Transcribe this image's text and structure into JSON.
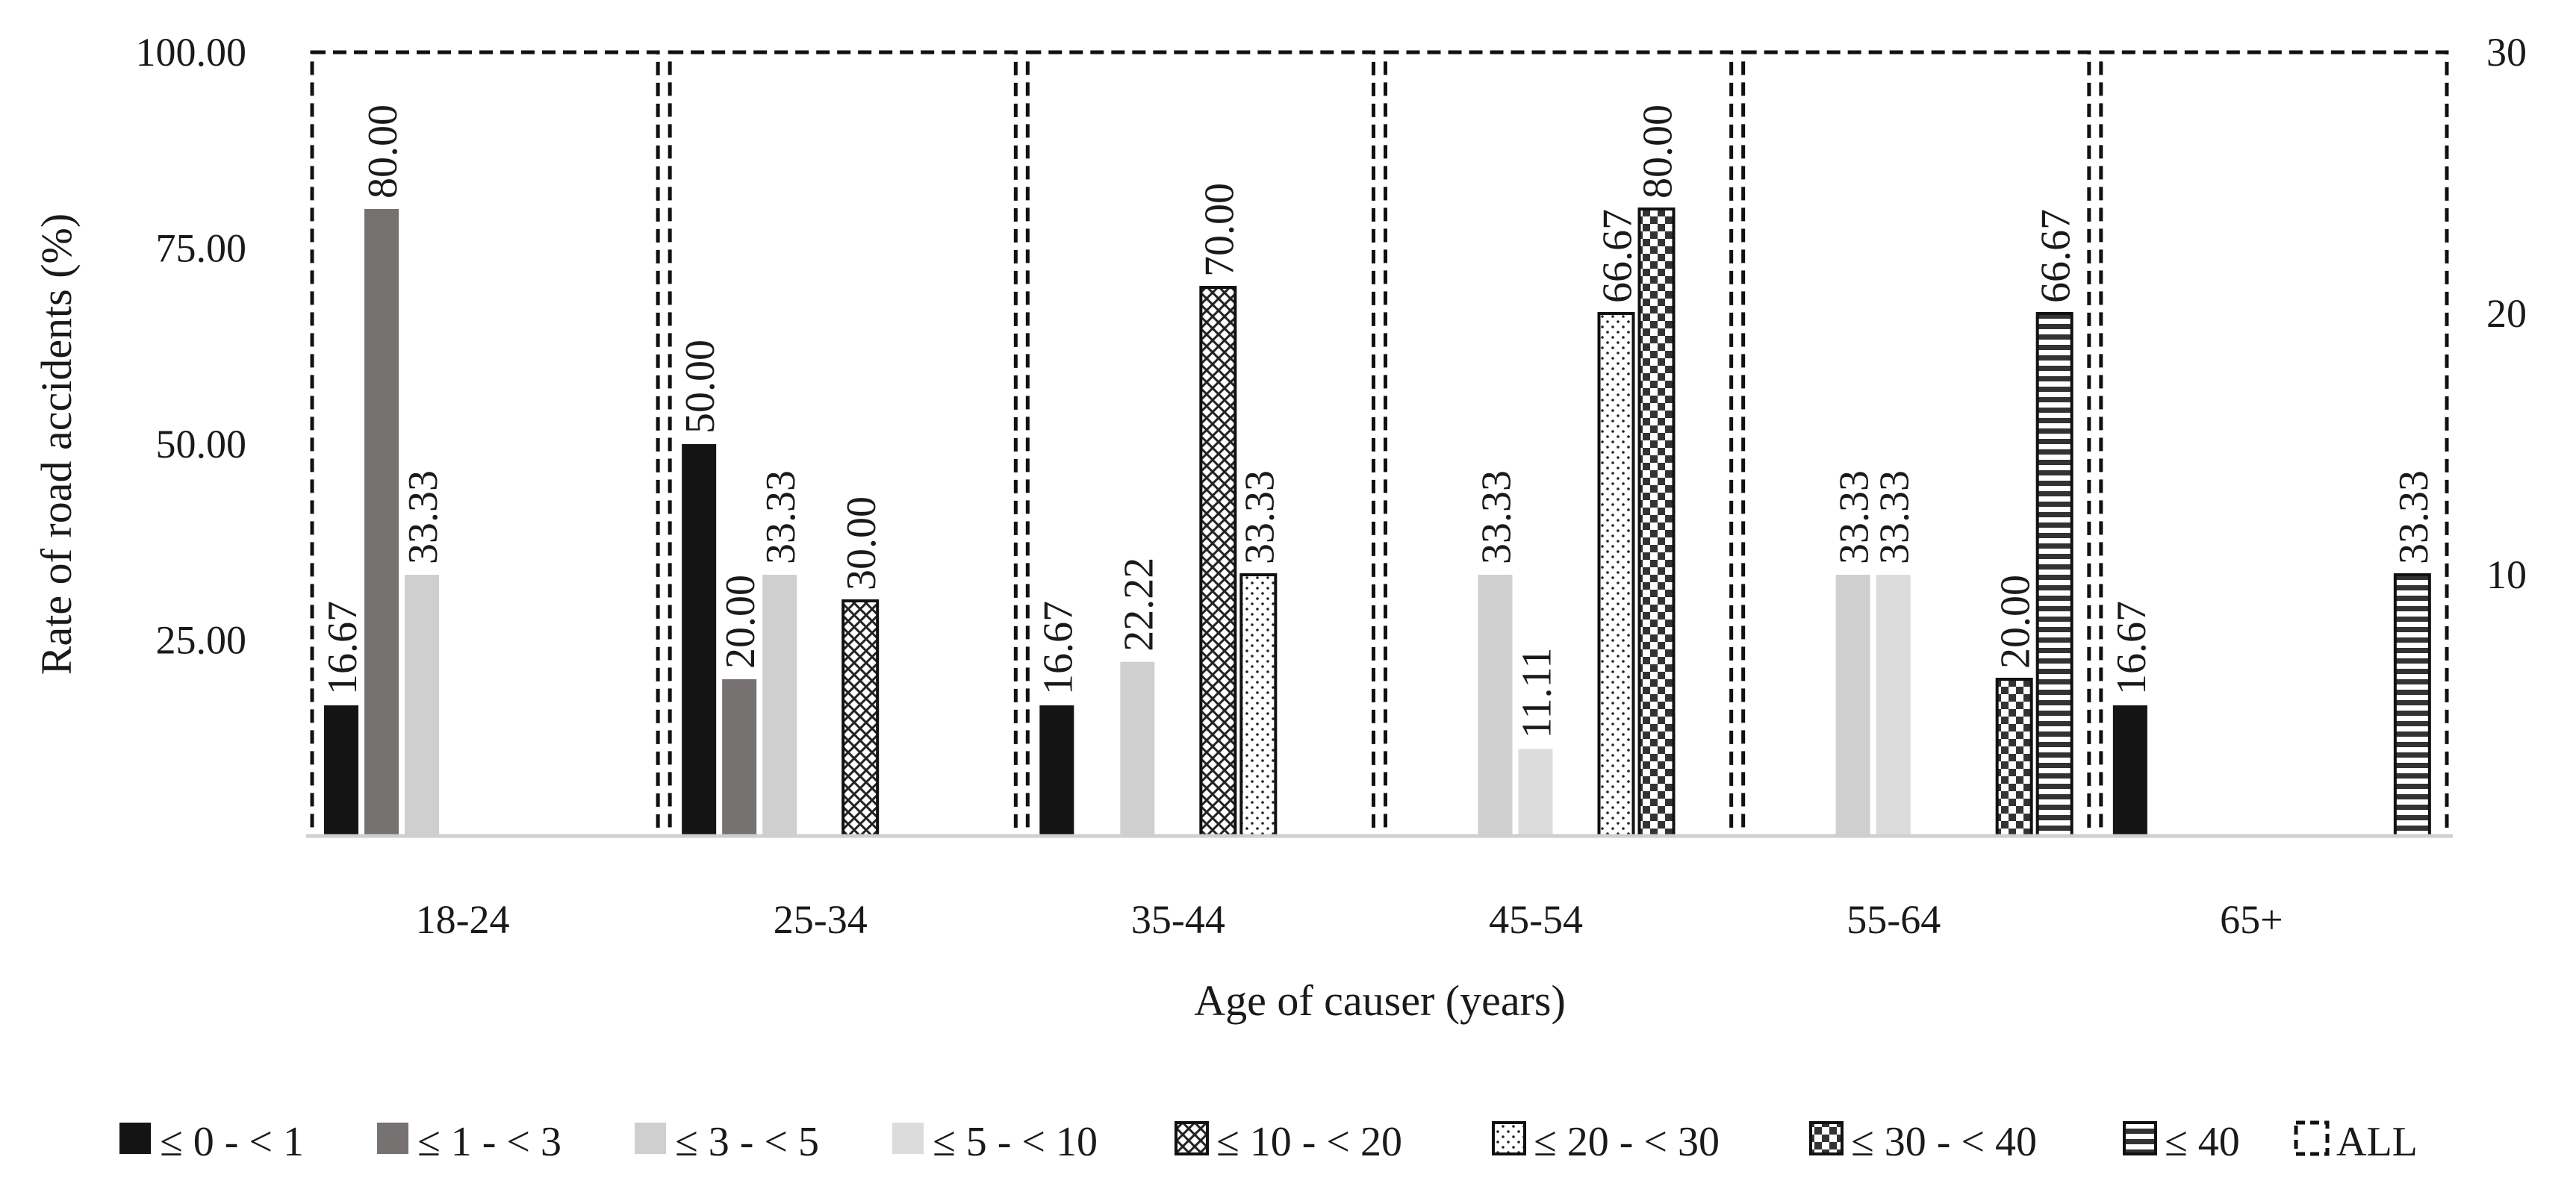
{
  "chart_data": {
    "type": "bar",
    "title": "",
    "xlabel": "Age of causer (years)",
    "ylabel": "Rate of road accidents (%)",
    "ylim": [
      0,
      100
    ],
    "yticks": [
      "25.00",
      "50.00",
      "75.00",
      "100.00"
    ],
    "y2lim": [
      0,
      30
    ],
    "y2ticks": [
      "10",
      "20",
      "30"
    ],
    "categories": [
      "18-24",
      "25-34",
      "35-44",
      "45-54",
      "55-64",
      "65+"
    ],
    "series": [
      {
        "name": "≤ 0 - < 1",
        "pattern": "solid-black",
        "values": [
          16.67,
          50.0,
          16.67,
          null,
          null,
          16.67
        ],
        "labels": [
          "16.67",
          "50.00",
          "16.67",
          null,
          null,
          "16.67"
        ]
      },
      {
        "name": "≤ 1 - < 3",
        "pattern": "solid-gray",
        "values": [
          80.0,
          20.0,
          null,
          null,
          null,
          null
        ],
        "labels": [
          "80.00",
          "20.00",
          null,
          null,
          null,
          null
        ]
      },
      {
        "name": "≤ 3 - < 5",
        "pattern": "solid-light",
        "values": [
          33.33,
          33.33,
          22.22,
          33.33,
          33.33,
          null
        ],
        "labels": [
          "33.33",
          "33.33",
          "22.22",
          "33.33",
          "33.33",
          null
        ]
      },
      {
        "name": "≤ 5 - < 10",
        "pattern": "solid-lighter",
        "values": [
          null,
          null,
          null,
          11.11,
          33.33,
          null
        ],
        "labels": [
          null,
          null,
          null,
          "11.11",
          "33.33",
          null
        ]
      },
      {
        "name": "≤ 10 - < 20",
        "pattern": "crosshatch",
        "values": [
          null,
          30.0,
          70.0,
          null,
          null,
          null
        ],
        "labels": [
          null,
          "30.00",
          "70.00",
          null,
          null,
          null
        ]
      },
      {
        "name": "≤ 20 - < 30",
        "pattern": "dots",
        "values": [
          null,
          null,
          33.33,
          66.67,
          null,
          null
        ],
        "labels": [
          null,
          null,
          "33.33",
          "66.67",
          null,
          null
        ]
      },
      {
        "name": "≤ 30 - < 40",
        "pattern": "checker",
        "values": [
          null,
          null,
          null,
          80.0,
          20.0,
          null
        ],
        "labels": [
          null,
          null,
          null,
          "80.00",
          "20.00",
          null
        ]
      },
      {
        "name": "≤ 40",
        "pattern": "hstripes",
        "values": [
          null,
          null,
          null,
          null,
          66.67,
          33.33
        ],
        "labels": [
          null,
          null,
          null,
          null,
          "66.67",
          "33.33"
        ]
      }
    ],
    "all_series": {
      "name": "ALL",
      "pattern": "dashed-outline",
      "values": [
        100,
        100,
        100,
        100,
        100,
        100
      ]
    },
    "legend_position": "bottom",
    "grid": false
  }
}
